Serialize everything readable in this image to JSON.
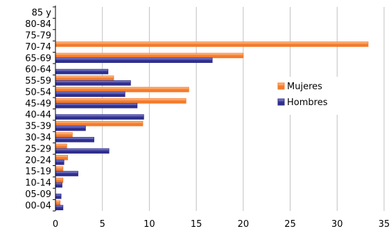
{
  "chart_data": {
    "type": "bar",
    "orientation": "horizontal",
    "categories": [
      "00-04",
      "05-09",
      "10-14",
      "15-19",
      "20-24",
      "25-29",
      "30-34",
      "35-39",
      "40-44",
      "45-49",
      "50-54",
      "55-59",
      "60-64",
      "65-69",
      "70-74",
      "75-79",
      "80-84",
      "85 y"
    ],
    "series": [
      {
        "name": "Mujeres",
        "color": "#F47A2A",
        "values": [
          0.5,
          0,
          0.8,
          0.8,
          1.3,
          1.2,
          1.8,
          9.3,
          0,
          13.9,
          14.2,
          6.2,
          0,
          20.0,
          33.3,
          0,
          0,
          0
        ]
      },
      {
        "name": "Hombres",
        "color": "#2E2E8C",
        "values": [
          0.8,
          0.6,
          0.7,
          2.4,
          0.9,
          5.7,
          4.1,
          3.2,
          9.4,
          8.7,
          7.4,
          8.0,
          5.6,
          16.7,
          0,
          0,
          0,
          0
        ]
      }
    ],
    "xlim": [
      0,
      35
    ],
    "x_ticks": [
      0,
      5,
      10,
      15,
      20,
      25,
      30,
      35
    ],
    "grid": true,
    "legend_placement": "right"
  }
}
